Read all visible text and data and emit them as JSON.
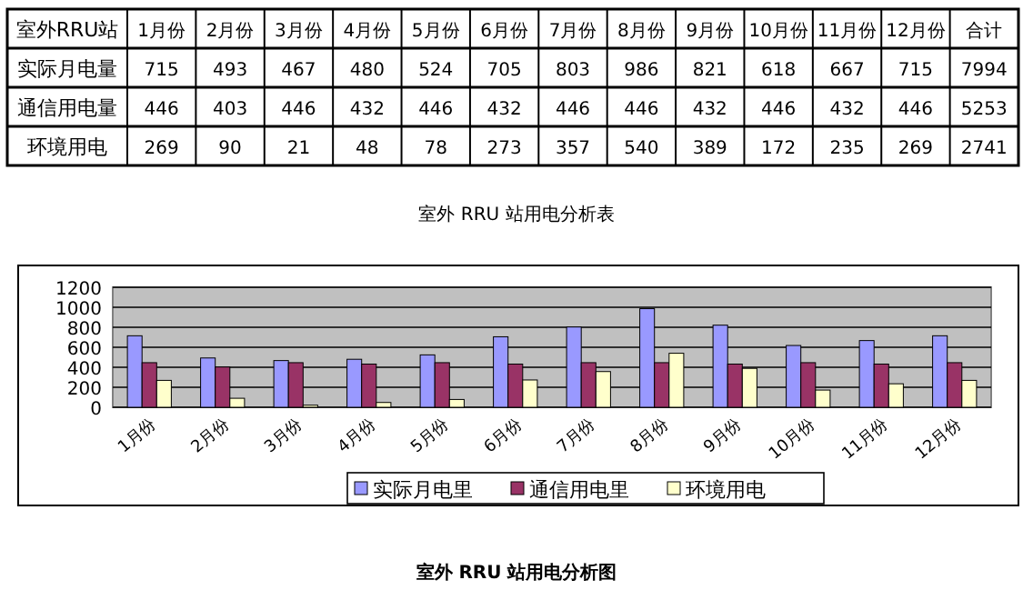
{
  "chart_data": {
    "type": "bar",
    "title": "室外 RRU 站用电分析图",
    "categories": [
      "1月份",
      "2月份",
      "3月份",
      "4月份",
      "5月份",
      "6月份",
      "7月份",
      "8月份",
      "9月份",
      "10月份",
      "11月份",
      "12月份"
    ],
    "series": [
      {
        "name": "实际月电里",
        "color": "#9999ff",
        "values": [
          715,
          493,
          467,
          480,
          524,
          705,
          803,
          986,
          821,
          618,
          667,
          715
        ]
      },
      {
        "name": "通信用电里",
        "color": "#993366",
        "values": [
          446,
          403,
          446,
          432,
          446,
          432,
          446,
          446,
          432,
          446,
          432,
          446
        ]
      },
      {
        "name": "环境用电",
        "color": "#ffffcc",
        "values": [
          269,
          90,
          21,
          48,
          78,
          273,
          357,
          540,
          389,
          172,
          235,
          269
        ]
      }
    ],
    "annotations": [
      "室外RRU站",
      "实际月电量",
      "通信用电量",
      "环境用电",
      "合计",
      "7994",
      "5253",
      "2741",
      "室外 RRU 站用电分析表"
    ],
    "data_labels": true,
    "ylim": [
      0,
      1200
    ],
    "yticks": [
      0,
      200,
      400,
      600,
      800,
      1000,
      1200
    ],
    "grid": "y",
    "legend": "bottom"
  }
}
